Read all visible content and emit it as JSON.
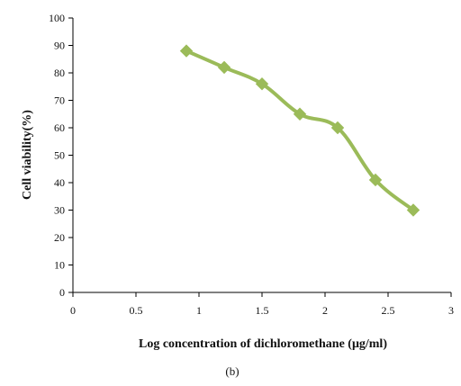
{
  "colors": {
    "series": "#9BBB59",
    "axis": "#000000"
  },
  "caption": "(b)",
  "chart_data": {
    "type": "line",
    "title": "",
    "xlabel": "Log concentration of dichloromethane (μg/ml)",
    "ylabel": "Cell viability(%)",
    "xlim": [
      0,
      3
    ],
    "ylim": [
      0,
      100
    ],
    "xticks": [
      "0",
      "0.5",
      "1",
      "1.5",
      "2",
      "2.5",
      "3"
    ],
    "yticks": [
      "0",
      "10",
      "20",
      "30",
      "40",
      "50",
      "60",
      "70",
      "80",
      "90",
      "100"
    ],
    "grid": false,
    "legend": "none",
    "marker": "diamond",
    "smooth": true,
    "series": [
      {
        "x": [
          0.9,
          1.2,
          1.5,
          1.8,
          2.1,
          2.4,
          2.7
        ],
        "y": [
          88,
          82,
          76,
          65,
          60,
          41,
          30
        ]
      }
    ]
  }
}
